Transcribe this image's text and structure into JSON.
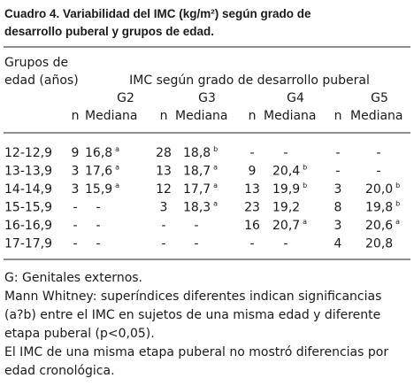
{
  "title_lines": [
    "Cuadro 4. Variabilidad del IMC (kg/m²) según grado de",
    "desarrollo puberal y grupos de edad."
  ],
  "table": {
    "row_header_lines": [
      "Grupos de",
      "edad (años)"
    ],
    "spanner": "IMC según grado de desarrollo puberal",
    "groups": [
      {
        "label": "G2",
        "n": "n",
        "median": "Mediana"
      },
      {
        "label": "G3",
        "n": "n",
        "median": "Mediana"
      },
      {
        "label": "G4",
        "n": "n",
        "median": "Mediana"
      },
      {
        "label": "G5",
        "n": "n",
        "median": "Mediana"
      }
    ],
    "rows": [
      {
        "age": "12-12,9",
        "cells": [
          {
            "n": "9",
            "median": "16,8",
            "sup": "a"
          },
          {
            "n": "28",
            "median": "18,8",
            "sup": "b"
          },
          {
            "n": "-",
            "median": "-"
          },
          {
            "n": "-",
            "median": "-"
          }
        ]
      },
      {
        "age": "13-13,9",
        "cells": [
          {
            "n": "3",
            "median": "17,6",
            "sup": "a"
          },
          {
            "n": "13",
            "median": "18,7",
            "sup": "a"
          },
          {
            "n": "9",
            "median": "20,4",
            "sup": "b"
          },
          {
            "n": "-",
            "median": "-"
          }
        ]
      },
      {
        "age": "14-14,9",
        "cells": [
          {
            "n": "3",
            "median": "15,9",
            "sup": "a"
          },
          {
            "n": "12",
            "median": "17,7",
            "sup": "a"
          },
          {
            "n": "13",
            "median": "19,9",
            "sup": "b"
          },
          {
            "n": "3",
            "median": "20,0",
            "sup": "b"
          }
        ]
      },
      {
        "age": "15-15,9",
        "cells": [
          {
            "n": "-",
            "median": "-"
          },
          {
            "n": "3",
            "median": "18,3",
            "sup": "a"
          },
          {
            "n": "23",
            "median": "19,2"
          },
          {
            "n": "8",
            "median": "19,8",
            "sup": "b"
          }
        ]
      },
      {
        "age": "16-16,9",
        "cells": [
          {
            "n": "-",
            "median": "-"
          },
          {
            "n": "-",
            "median": "-"
          },
          {
            "n": "16",
            "median": "20,7",
            "sup": "a"
          },
          {
            "n": "3",
            "median": "20,6",
            "sup": "a"
          }
        ]
      },
      {
        "age": "17-17,9",
        "cells": [
          {
            "n": "-",
            "median": "-"
          },
          {
            "n": "-",
            "median": "-"
          },
          {
            "n": "-",
            "median": "-"
          },
          {
            "n": "4",
            "median": "20,8"
          }
        ]
      }
    ]
  },
  "notes": [
    "G: Genitales externos.",
    "Mann Whitney: superíndices diferentes indican significancias",
    "(a?b) entre el IMC en sujetos de una misma edad y diferente",
    "etapa puberal  (p<0,05).",
    "El IMC de una misma etapa puberal no mostró diferencias por",
    "edad cronológica."
  ]
}
